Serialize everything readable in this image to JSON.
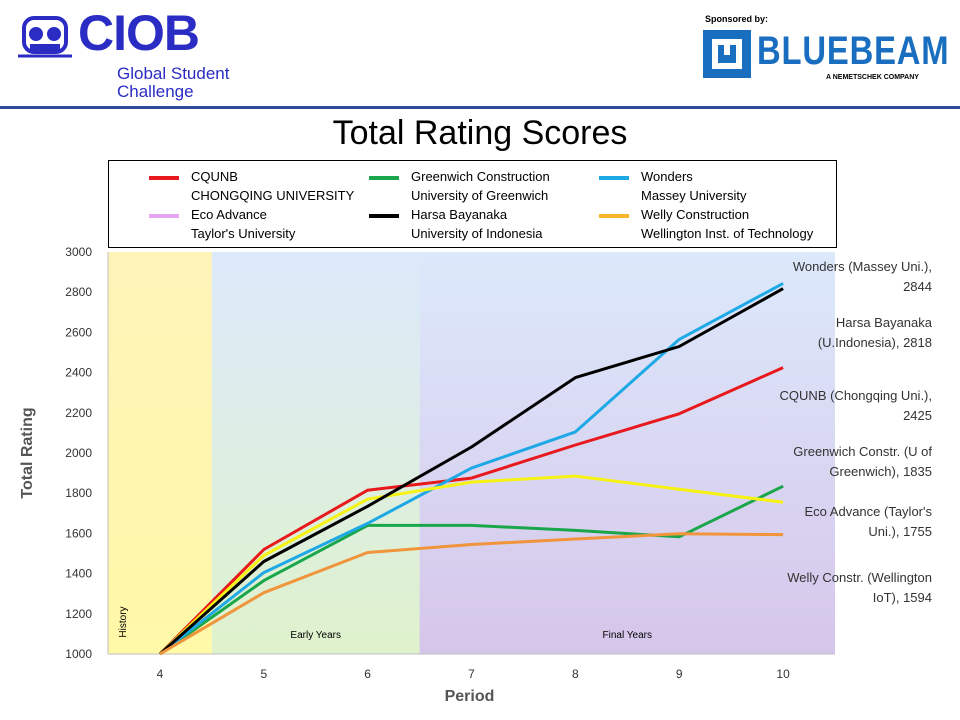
{
  "header": {
    "logo_word": "CIOB",
    "logo_line1": "Global Student",
    "logo_line2": "Challenge",
    "sponsor_label": "Sponsored by:",
    "sponsor_name": "BLUEBEAM",
    "sponsor_tagline": "A NEMETSCHEK COMPANY",
    "colors": {
      "ciob": "#2b2cc4",
      "bluebeam": "#1a6ec0",
      "rule": "#2e4a9a"
    }
  },
  "chart_data": {
    "type": "line",
    "title": "Total Rating Scores",
    "xlabel": "Period",
    "ylabel": "Total Rating",
    "x": [
      4,
      5,
      6,
      7,
      8,
      9,
      10
    ],
    "ylim": [
      1000,
      3000
    ],
    "yticks": [
      1000,
      1200,
      1400,
      1600,
      1800,
      2000,
      2200,
      2400,
      2600,
      2800,
      3000
    ],
    "grid": false,
    "legend_position": "top",
    "series": [
      {
        "name": "CQUNB",
        "subtitle": "CHONGQING UNIVERSITY",
        "color": "#e8191c",
        "values": [
          1000,
          1520,
          1815,
          1875,
          2040,
          2195,
          2425
        ]
      },
      {
        "name": "Greenwich Construction",
        "subtitle": "University of Greenwich",
        "color": "#1aa64b",
        "values": [
          1000,
          1365,
          1640,
          1640,
          1615,
          1583,
          1835
        ]
      },
      {
        "name": "Wonders",
        "subtitle": "Massey University",
        "color": "#1ea9e6",
        "values": [
          1000,
          1405,
          1650,
          1925,
          2105,
          2565,
          2844
        ]
      },
      {
        "name": "Eco Advance",
        "subtitle": "Taylor's University",
        "color": "#f5f214",
        "legend_color": "#e3a6f0",
        "values": [
          1000,
          1490,
          1770,
          1855,
          1885,
          1820,
          1755
        ]
      },
      {
        "name": "Harsa Bayanaka",
        "subtitle": "University of Indonesia",
        "color": "#000000",
        "values": [
          1000,
          1460,
          1735,
          2030,
          2375,
          2530,
          2818
        ]
      },
      {
        "name": "Welly Construction",
        "subtitle": "Wellington Inst. of Technology",
        "color": "#f0953c",
        "legend_color": "#f7b52c",
        "values": [
          1000,
          1305,
          1505,
          1545,
          1572,
          1598,
          1594
        ]
      }
    ],
    "bands": [
      {
        "label": "History",
        "from": 3.5,
        "to": 4.5,
        "color_top": "#fff3b8",
        "color_bottom": "#fff9a8"
      },
      {
        "label": "Early Years",
        "from": 4.5,
        "to": 6.5,
        "color_top": "#dce9fb",
        "color_bottom": "#dff2cc"
      },
      {
        "label": "Final Years",
        "from": 6.5,
        "to": 10.5,
        "color_top": "#dce9fb",
        "color_bottom": "#d6c6ea"
      }
    ],
    "annotations": [
      {
        "line1": "Wonders (Massey Uni.),",
        "line2": "2844",
        "y": 2844
      },
      {
        "line1": "Harsa Bayanaka",
        "line2": "(U.Indonesia), 2818",
        "y": 2818
      },
      {
        "line1": "CQUNB (Chongqing Uni.),",
        "line2": "2425",
        "y": 2425
      },
      {
        "line1": "Greenwich Constr. (U of",
        "line2": "Greenwich), 1835",
        "y": 1835
      },
      {
        "line1": "Eco Advance (Taylor's",
        "line2": "Uni.), 1755",
        "y": 1755
      },
      {
        "line1": "Welly Constr. (Wellington",
        "line2": "IoT), 1594",
        "y": 1594
      }
    ]
  }
}
